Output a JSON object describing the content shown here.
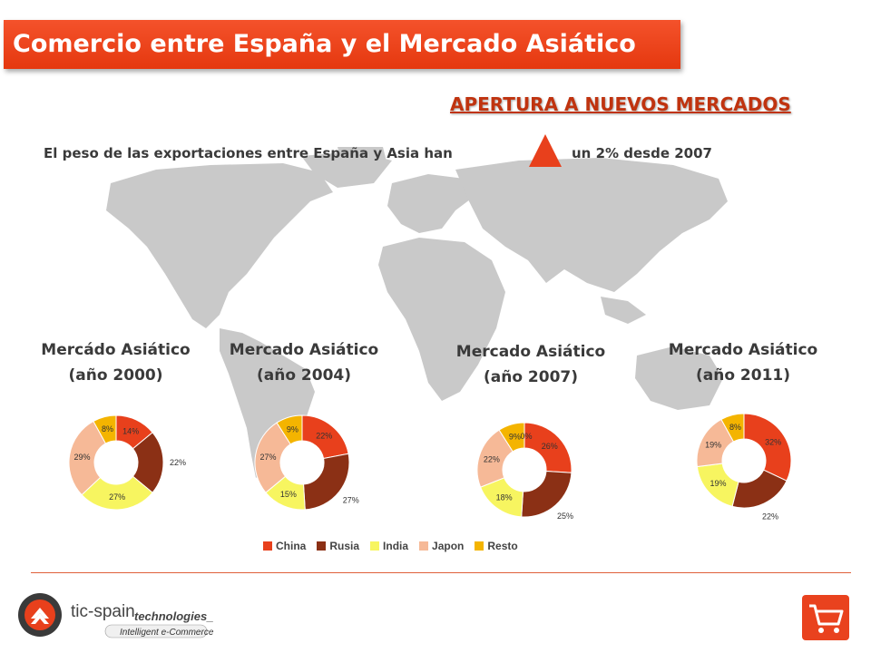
{
  "title": "Comercio entre España y el Mercado Asiático",
  "subhead": "APERTURA A NUEVOS MERCADOS",
  "weight_text_left": "El peso de las exportaciones entre España y Asia han",
  "weight_text_right": "un 2% desde 2007",
  "logo": {
    "brand": "tic-spain",
    "brand2": "technologies_",
    "tagline": "Intelligent e-Commerce"
  },
  "colors": {
    "China": "#e8401c",
    "Rusia": "#8b3015",
    "India": "#f7f560",
    "Japon": "#f6b997",
    "Resto": "#f4b400"
  },
  "legend": [
    "China",
    "Rusia",
    "India",
    "Japon",
    "Resto"
  ],
  "chart_data": [
    {
      "type": "pie",
      "title_line1": "Mercádo Asiático",
      "title_line2": "(año 2000)",
      "categories": [
        "China",
        "Rusia",
        "India",
        "Japon",
        "Resto"
      ],
      "values": [
        14,
        22,
        27,
        29,
        8
      ],
      "labels": [
        "14%",
        "22%",
        "27%",
        "29%",
        "8%"
      ]
    },
    {
      "type": "pie",
      "title_line1": "Mercado Asiático",
      "title_line2": "(año 2004)",
      "categories": [
        "China",
        "Rusia",
        "India",
        "Japon",
        "Resto"
      ],
      "values": [
        22,
        27,
        15,
        27,
        9
      ],
      "labels": [
        "22%",
        "27%",
        "15%",
        "27%",
        "9%"
      ]
    },
    {
      "type": "pie",
      "title_line1": "Mercado Asiático",
      "title_line2": "(año 2007)",
      "categories": [
        "China",
        "Rusia",
        "India",
        "Japon",
        "Resto"
      ],
      "values": [
        26,
        25,
        18,
        22,
        9
      ],
      "labels": [
        "26%",
        "25%",
        "18%",
        "22%",
        "9%"
      ],
      "extra_label": "0%"
    },
    {
      "type": "pie",
      "title_line1": "Mercado Asiático",
      "title_line2": "(año 2011)",
      "categories": [
        "China",
        "Rusia",
        "India",
        "Japon",
        "Resto"
      ],
      "values": [
        32,
        22,
        19,
        19,
        8
      ],
      "labels": [
        "32%",
        "22%",
        "19%",
        "19%",
        "8%"
      ]
    }
  ]
}
